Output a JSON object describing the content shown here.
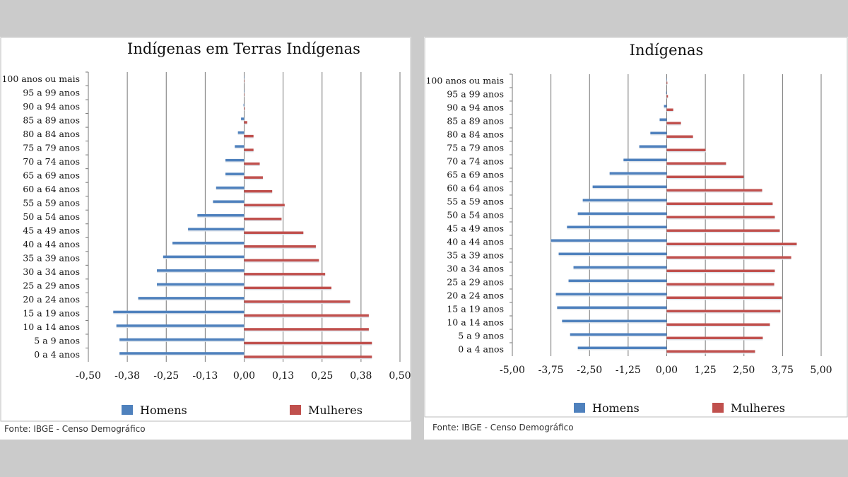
{
  "chart_data": [
    {
      "type": "bar",
      "orientation": "horizontal-population-pyramid",
      "title": "Indígenas em Terras Indígenas",
      "categories": [
        "100 anos ou mais",
        "95 a 99 anos",
        "90 a 94 anos",
        "85 a 89 anos",
        "80 a 84 anos",
        "75 a 79 anos",
        "70 a 74 anos",
        "65 a 69 anos",
        "60 a 64 anos",
        "55 a 59 anos",
        "50 a 54 anos",
        "45 a 49 anos",
        "40 a 44 anos",
        "35 a 39 anos",
        "30 a 34 anos",
        "25 a 29 anos",
        "20 a 24 anos",
        "15 a 19 anos",
        "10 a 14 anos",
        "5 a 9 anos",
        "0 a 4 anos"
      ],
      "series": [
        {
          "name": "Homens",
          "color": "#4f81bd",
          "values": [
            0,
            0,
            -0.002,
            -0.01,
            -0.02,
            -0.03,
            -0.06,
            -0.06,
            -0.09,
            -0.1,
            -0.15,
            -0.18,
            -0.23,
            -0.26,
            -0.28,
            -0.28,
            -0.34,
            -0.42,
            -0.41,
            -0.4,
            -0.4
          ]
        },
        {
          "name": "Mulheres",
          "color": "#c0504d",
          "values": [
            0,
            0,
            0.002,
            0.01,
            0.03,
            0.03,
            0.05,
            0.06,
            0.09,
            0.13,
            0.12,
            0.19,
            0.23,
            0.24,
            0.26,
            0.28,
            0.34,
            0.4,
            0.4,
            0.41,
            0.41
          ]
        }
      ],
      "xticks": [
        "-0,50",
        "-0,38",
        "-0,25",
        "-0,13",
        "0,00",
        "0,13",
        "0,25",
        "0,38",
        "0,50"
      ],
      "xlim": [
        -0.5,
        0.5
      ],
      "grid": true,
      "legend": "bottom",
      "source": "Fonte: IBGE - Censo Demográfico"
    },
    {
      "type": "bar",
      "orientation": "horizontal-population-pyramid",
      "title": "Indígenas",
      "categories": [
        "100 anos ou mais",
        "95 a 99 anos",
        "90 a 94 anos",
        "85 a 89 anos",
        "80 a 84 anos",
        "75 a 79 anos",
        "70 a 74 anos",
        "65 a 69 anos",
        "60 a 64 anos",
        "55 a 59 anos",
        "50 a 54 anos",
        "45 a 49 anos",
        "40 a 44 anos",
        "35 a 39 anos",
        "30 a 34 anos",
        "25 a 29 anos",
        "20 a 24 anos",
        "15 a 19 anos",
        "10 a 14 anos",
        "5 a 9 anos",
        "0 a 4 anos"
      ],
      "series": [
        {
          "name": "Homens",
          "color": "#4f81bd",
          "values": [
            -0.01,
            -0.02,
            -0.09,
            -0.23,
            -0.53,
            -0.89,
            -1.4,
            -1.85,
            -2.4,
            -2.72,
            -2.88,
            -3.23,
            -3.75,
            -3.5,
            -3.02,
            -3.18,
            -3.59,
            -3.55,
            -3.39,
            -3.13,
            -2.88
          ]
        },
        {
          "name": "Mulheres",
          "color": "#c0504d",
          "values": [
            0.02,
            0.04,
            0.21,
            0.46,
            0.85,
            1.26,
            1.92,
            2.49,
            3.09,
            3.43,
            3.5,
            3.66,
            4.21,
            4.03,
            3.5,
            3.48,
            3.73,
            3.68,
            3.34,
            3.11,
            2.86
          ]
        }
      ],
      "xticks": [
        "-5,00",
        "-3,75",
        "-2,50",
        "-1,25",
        "0,00",
        "1,25",
        "2,50",
        "3,75",
        "5,00"
      ],
      "xlim": [
        -5,
        5
      ],
      "grid": true,
      "legend": "bottom",
      "source": "Fonte: IBGE - Censo Demográfico"
    }
  ]
}
